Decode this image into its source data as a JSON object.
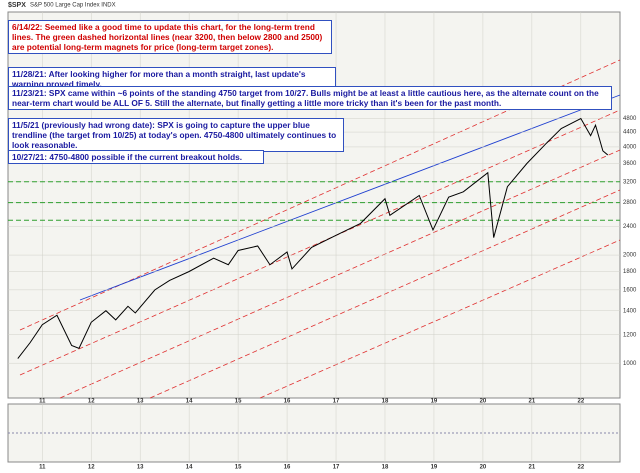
{
  "chart_data": {
    "type": "line",
    "title": "$SPX",
    "subtitle": "S&P 500 Large Cap Index  INDX",
    "log_scale": true,
    "grid": true,
    "xlim": [
      2010.3,
      2022.8
    ],
    "xticks": [
      {
        "value": 2011,
        "label": "11"
      },
      {
        "value": 2012,
        "label": "12"
      },
      {
        "value": 2013,
        "label": "13"
      },
      {
        "value": 2014,
        "label": "14"
      },
      {
        "value": 2015,
        "label": "15"
      },
      {
        "value": 2016,
        "label": "16"
      },
      {
        "value": 2017,
        "label": "17"
      },
      {
        "value": 2018,
        "label": "18"
      },
      {
        "value": 2019,
        "label": "19"
      },
      {
        "value": 2020,
        "label": "20"
      },
      {
        "value": 2021,
        "label": "21"
      },
      {
        "value": 2022,
        "label": "22"
      }
    ],
    "ylim": [
      800,
      9500
    ],
    "yticks": [
      1000,
      1200,
      1400,
      1600,
      1800,
      2000,
      2400,
      2800,
      3200,
      3600,
      4000,
      4400,
      4800
    ],
    "levels": [
      3200,
      2800,
      2500
    ],
    "levels_color": "#2e9e2e",
    "series": [
      {
        "name": "$SPX",
        "color": "#000000",
        "x": [
          2010.5,
          2010.75,
          2011.0,
          2011.3,
          2011.6,
          2011.75,
          2012.0,
          2012.3,
          2012.5,
          2012.75,
          2012.9,
          2013.3,
          2013.6,
          2014.0,
          2014.5,
          2014.8,
          2015.0,
          2015.4,
          2015.65,
          2016.0,
          2016.1,
          2016.5,
          2017.0,
          2017.5,
          2018.0,
          2018.1,
          2018.7,
          2018.98,
          2019.3,
          2019.6,
          2020.1,
          2020.22,
          2020.5,
          2020.9,
          2021.3,
          2021.6,
          2022.0,
          2022.2,
          2022.3,
          2022.45,
          2022.55
        ],
        "values": [
          1030,
          1140,
          1280,
          1360,
          1120,
          1100,
          1300,
          1400,
          1320,
          1440,
          1380,
          1600,
          1700,
          1800,
          1960,
          1880,
          2060,
          2120,
          1880,
          2040,
          1830,
          2100,
          2270,
          2450,
          2870,
          2580,
          2930,
          2350,
          2900,
          3000,
          3390,
          2237,
          3100,
          3600,
          4100,
          4500,
          4800,
          4300,
          4600,
          3900,
          3800
        ]
      }
    ],
    "annotations": [
      {
        "text": "6/14/22:  Seemed like a good time to update this chart, for the long-term trend lines.  The green dashed horizontal lines (near 3200, then below 2800 and 2500) are potential long-term magnets for price (long-term target zones).",
        "color": "#d00000"
      },
      {
        "text": "11/28/21:  After looking higher for more than a month straight, last update's warning proved timely.",
        "color": "#1a1aa0"
      },
      {
        "text": "11/23/21:  SPX came within ~6 points of the standing 4750 target from 10/27.  Bulls might be at least a little cautious here, as the alternate count on the near-term chart would be ALL OF 5.  Still the alternate, but finally getting a little more tricky than it's been for the past month.",
        "color": "#1a1aa0"
      },
      {
        "text": "11/5/21 (previously had wrong date):  SPX is going to capture the upper blue trendline (the target from 10/25) at today's open.  4750-4800 ultimately continues to look reasonable.",
        "color": "#1a1aa0"
      },
      {
        "text": "10/27/21:  4750-4800 possible if the current breakout holds.",
        "color": "#1a1aa0"
      }
    ]
  }
}
